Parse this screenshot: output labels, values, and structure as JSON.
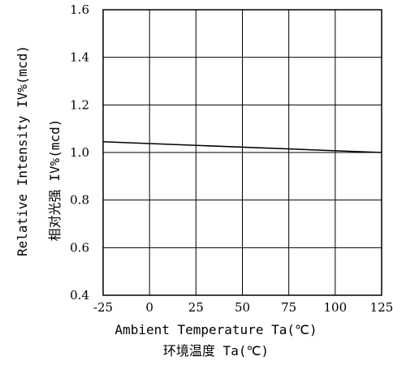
{
  "chart_data": {
    "type": "line",
    "xlabel": "Ambient Temperature Ta(℃)",
    "xlabel_cn": "环境温度 Ta(℃)",
    "ylabel": "Relative Intensity IV%(mcd)",
    "ylabel_cn": "相对光强 IV%(mcd)",
    "xlim": [
      -25,
      125
    ],
    "ylim": [
      0.4,
      1.6
    ],
    "x_ticks": [
      -25,
      0,
      25,
      50,
      75,
      100,
      125
    ],
    "y_ticks": [
      0.4,
      0.6,
      0.8,
      1.0,
      1.2,
      1.4,
      1.6
    ],
    "x_tick_labels": [
      "-25",
      "0",
      "25",
      "50",
      "75",
      "100",
      "125"
    ],
    "y_tick_labels": [
      "0.4",
      "0.6",
      "0.8",
      "1.0",
      "1.2",
      "1.4",
      "1.6"
    ],
    "grid": true,
    "series": [
      {
        "x": [
          -25,
          125
        ],
        "y": [
          1.045,
          1.0
        ],
        "color": "#000000"
      }
    ]
  }
}
